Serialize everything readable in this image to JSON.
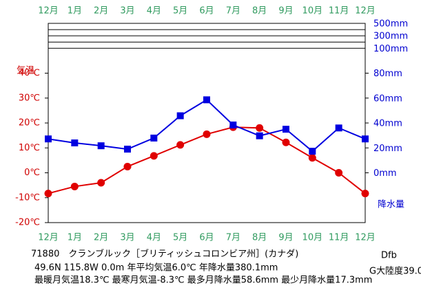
{
  "chart_data": {
    "type": "line",
    "categories": [
      "12月",
      "1月",
      "2月",
      "3月",
      "4月",
      "5月",
      "6月",
      "7月",
      "8月",
      "9月",
      "10月",
      "11月",
      "12月"
    ],
    "ylabel": "気温",
    "y2label": "降水量",
    "ylim": [
      -20,
      60
    ],
    "yticks": [
      {
        "value": -20,
        "label": "-20℃"
      },
      {
        "value": -10,
        "label": "-10℃"
      },
      {
        "value": 0,
        "label": "0℃"
      },
      {
        "value": 10,
        "label": "10℃"
      },
      {
        "value": 20,
        "label": "20℃"
      },
      {
        "value": 30,
        "label": "30℃"
      },
      {
        "value": 40,
        "label": "40℃"
      }
    ],
    "y2lim": [
      -40,
      500
    ],
    "y2ticks": [
      {
        "value": 0,
        "label": "0mm"
      },
      {
        "value": 20,
        "label": "20mm"
      },
      {
        "value": 40,
        "label": "40mm"
      },
      {
        "value": 60,
        "label": "60mm"
      },
      {
        "value": 80,
        "label": "80mm"
      },
      {
        "value": 100,
        "label": "100mm"
      },
      {
        "value": 200,
        "label": null
      },
      {
        "value": 300,
        "label": "300mm"
      },
      {
        "value": 400,
        "label": null
      },
      {
        "value": 500,
        "label": "500mm"
      }
    ],
    "series": [
      {
        "color": "#e00000",
        "marker": "circle",
        "values": [
          -8.3,
          -5.5,
          -4.0,
          2.5,
          6.8,
          11.2,
          15.5,
          18.3,
          18.0,
          12.2,
          6.0,
          0.0,
          -8.3
        ]
      },
      {
        "color": "#0000e0",
        "marker": "square",
        "axis": "y2",
        "values": [
          27.2,
          24.0,
          21.7,
          19.0,
          27.9,
          45.8,
          58.6,
          38.4,
          29.7,
          35.0,
          17.3,
          36.0,
          27.2
        ]
      }
    ],
    "station": "71880　クランブルック［ブリティッシュコロンビア州］(カナダ)",
    "info_line1": "49.6N  115.8W  0.0m  年平均気温6.0℃  年降水量380.1mm",
    "info_line2": "最暖月気温18.3℃ 最寒月気温-8.3℃ 最多月降水量58.6mm 最少月降水量17.3mm",
    "climate_class": "Dfb",
    "continentality": "G大陸度39.0"
  }
}
